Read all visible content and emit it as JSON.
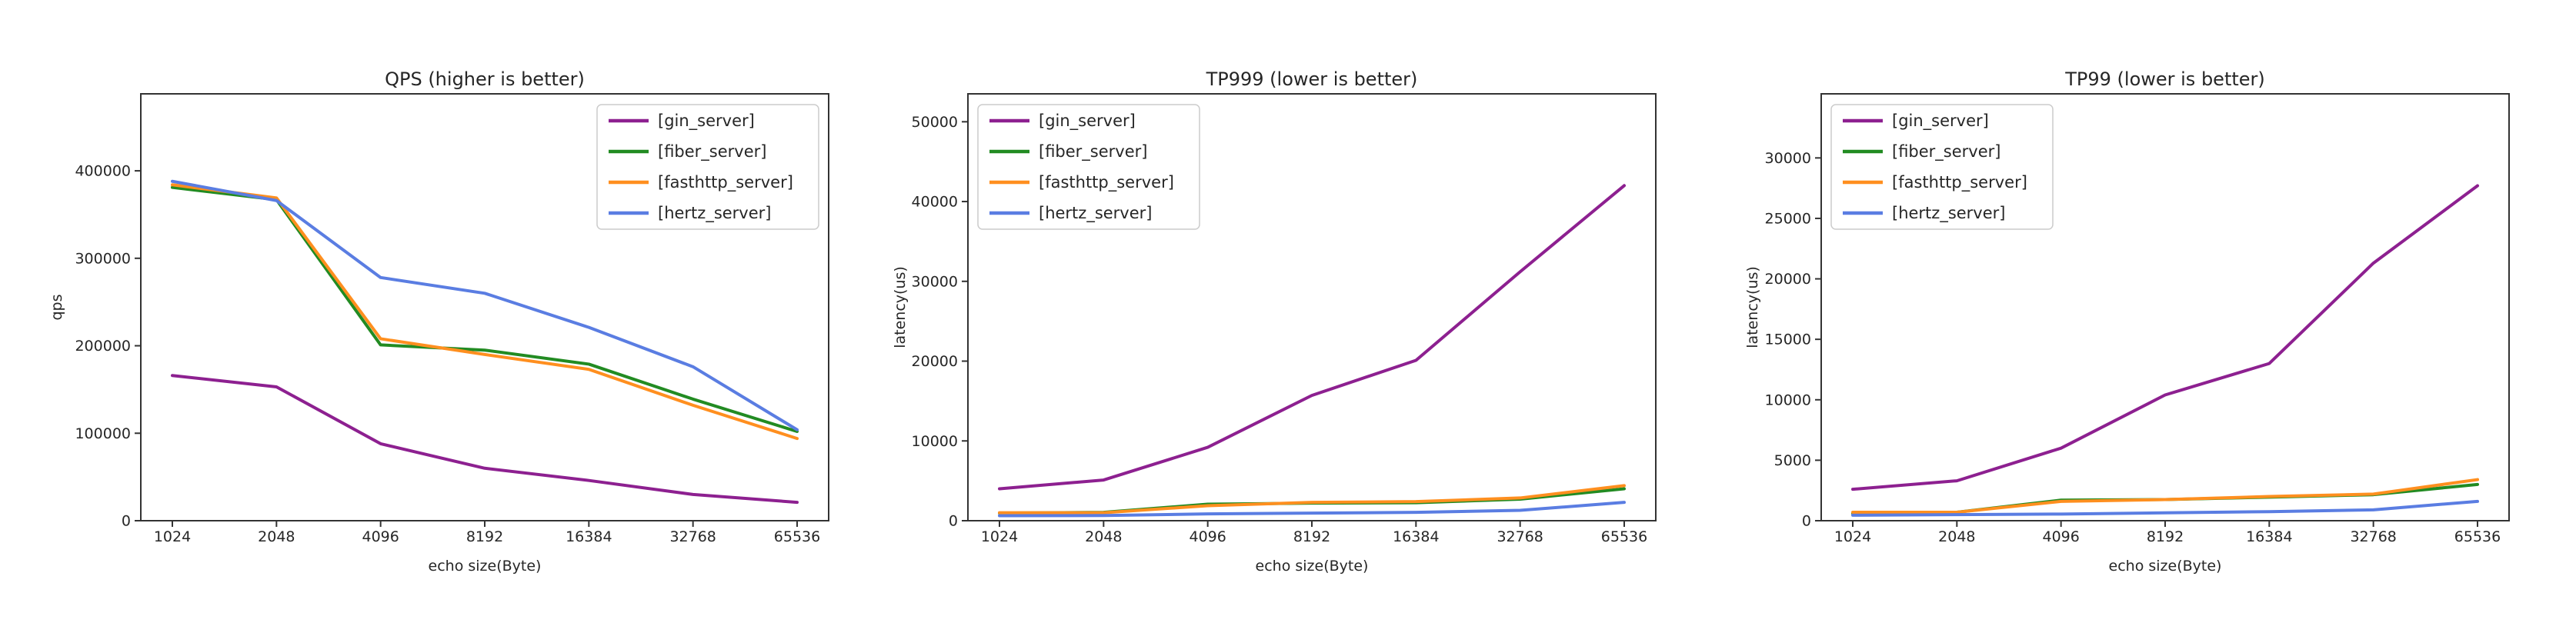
{
  "figure": {
    "background": "#ffffff",
    "text_color": "#262626",
    "spine_color": "#333333"
  },
  "chart_data": [
    {
      "id": "qps",
      "type": "line",
      "title": "QPS (higher is better)",
      "xlabel": "echo size(Byte)",
      "ylabel": "qps",
      "categories": [
        "1024",
        "2048",
        "4096",
        "8192",
        "16384",
        "32768",
        "65536"
      ],
      "yticks": [
        0,
        100000,
        200000,
        300000,
        400000
      ],
      "ylim": [
        0,
        488000
      ],
      "grid": false,
      "legend_position": "upper-right",
      "series": [
        {
          "name": "[gin_server]",
          "color": "#8d2090",
          "values": [
            166000,
            153000,
            88000,
            60000,
            46000,
            30000,
            21000
          ]
        },
        {
          "name": "[fiber_server]",
          "color": "#228b22",
          "values": [
            381000,
            367000,
            201000,
            195000,
            179000,
            139000,
            102000
          ]
        },
        {
          "name": "[fasthttp_server]",
          "color": "#ff8f1f",
          "values": [
            384000,
            369000,
            208000,
            190000,
            173000,
            132000,
            94000
          ]
        },
        {
          "name": "[hertz_server]",
          "color": "#5a7de2",
          "values": [
            388000,
            366000,
            278000,
            260000,
            221000,
            176000,
            104000
          ]
        }
      ]
    },
    {
      "id": "tp999",
      "type": "line",
      "title": "TP999 (lower is better)",
      "xlabel": "echo size(Byte)",
      "ylabel": "latency(us)",
      "categories": [
        "1024",
        "2048",
        "4096",
        "8192",
        "16384",
        "32768",
        "65536"
      ],
      "yticks": [
        0,
        10000,
        20000,
        30000,
        40000,
        50000
      ],
      "ylim": [
        0,
        53500
      ],
      "grid": false,
      "legend_position": "upper-left",
      "series": [
        {
          "name": "[gin_server]",
          "color": "#8d2090",
          "values": [
            4000,
            5100,
            9200,
            15700,
            20100,
            31200,
            42000
          ]
        },
        {
          "name": "[fiber_server]",
          "color": "#228b22",
          "values": [
            950,
            1050,
            2070,
            2200,
            2250,
            2700,
            4000
          ]
        },
        {
          "name": "[fasthttp_server]",
          "color": "#ff8f1f",
          "values": [
            1000,
            1000,
            1880,
            2300,
            2400,
            2850,
            4400
          ]
        },
        {
          "name": "[hertz_server]",
          "color": "#5a7de2",
          "values": [
            630,
            650,
            850,
            950,
            1050,
            1300,
            2300
          ]
        }
      ]
    },
    {
      "id": "tp99",
      "type": "line",
      "title": "TP99 (lower is better)",
      "xlabel": "echo size(Byte)",
      "ylabel": "latency(us)",
      "categories": [
        "1024",
        "2048",
        "4096",
        "8192",
        "16384",
        "32768",
        "65536"
      ],
      "yticks": [
        0,
        5000,
        10000,
        15000,
        20000,
        25000,
        30000
      ],
      "ylim": [
        0,
        35300
      ],
      "grid": false,
      "legend_position": "upper-left",
      "series": [
        {
          "name": "[gin_server]",
          "color": "#8d2090",
          "values": [
            2600,
            3300,
            6000,
            10400,
            13000,
            21300,
            27700
          ]
        },
        {
          "name": "[fiber_server]",
          "color": "#228b22",
          "values": [
            600,
            700,
            1700,
            1750,
            1950,
            2150,
            3000
          ]
        },
        {
          "name": "[fasthttp_server]",
          "color": "#ff8f1f",
          "values": [
            700,
            700,
            1600,
            1750,
            2000,
            2200,
            3400
          ]
        },
        {
          "name": "[hertz_server]",
          "color": "#5a7de2",
          "values": [
            450,
            500,
            550,
            650,
            750,
            900,
            1600
          ]
        }
      ]
    }
  ]
}
